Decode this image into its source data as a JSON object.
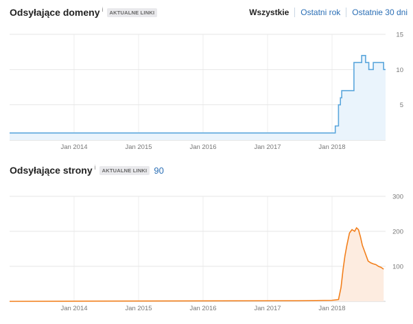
{
  "tabs": {
    "all": "Wszystkie",
    "last_year": "Ostatni rok",
    "last_30_days": "Ostatnie 30 dni"
  },
  "info_glyph": "i",
  "colors": {
    "domains_line": "#5aa6dc",
    "domains_fill": "#eaf4fc",
    "pages_line": "#f27f1b",
    "pages_fill": "#fdece0",
    "link": "#2a6eb5"
  },
  "chart_data": [
    {
      "type": "area",
      "title": "Odsyłające domeny",
      "badge": "AKTUALNE LINKI",
      "xlabel": "",
      "ylabel": "",
      "xlim": [
        2013.0,
        2018.83
      ],
      "ylim": [
        0,
        15
      ],
      "yticks": [
        5,
        10,
        15
      ],
      "xticks": [
        {
          "x": 2014.0,
          "label": "Jan 2014"
        },
        {
          "x": 2015.0,
          "label": "Jan 2015"
        },
        {
          "x": 2016.0,
          "label": "Jan 2016"
        },
        {
          "x": 2017.0,
          "label": "Jan 2017"
        },
        {
          "x": 2018.0,
          "label": "Jan 2018"
        }
      ],
      "step": true,
      "x": [
        2013.0,
        2018.05,
        2018.1,
        2018.13,
        2018.15,
        2018.19,
        2018.34,
        2018.37,
        2018.46,
        2018.52,
        2018.57,
        2018.64,
        2018.8
      ],
      "y": [
        1,
        2,
        5,
        6,
        7,
        7,
        11,
        11,
        12,
        11,
        10,
        11,
        10
      ],
      "legend": "none",
      "grid": true
    },
    {
      "type": "area",
      "title": "Odsyłające strony",
      "badge": "AKTUALNE LINKI",
      "total": "90",
      "xlabel": "",
      "ylabel": "",
      "xlim": [
        2013.0,
        2018.83
      ],
      "ylim": [
        0,
        300
      ],
      "yticks": [
        100,
        200,
        300
      ],
      "xticks": [
        {
          "x": 2014.0,
          "label": "Jan 2014"
        },
        {
          "x": 2015.0,
          "label": "Jan 2015"
        },
        {
          "x": 2016.0,
          "label": "Jan 2016"
        },
        {
          "x": 2017.0,
          "label": "Jan 2017"
        },
        {
          "x": 2018.0,
          "label": "Jan 2018"
        }
      ],
      "step": false,
      "x": [
        2013.0,
        2017.5,
        2018.0,
        2018.1,
        2018.14,
        2018.17,
        2018.2,
        2018.23,
        2018.27,
        2018.31,
        2018.35,
        2018.38,
        2018.41,
        2018.44,
        2018.47,
        2018.5,
        2018.53,
        2018.56,
        2018.6,
        2018.64,
        2018.68,
        2018.72,
        2018.76,
        2018.8
      ],
      "y": [
        0,
        2,
        3,
        5,
        40,
        90,
        130,
        160,
        195,
        205,
        200,
        210,
        205,
        185,
        160,
        145,
        130,
        115,
        110,
        107,
        105,
        100,
        97,
        92
      ],
      "legend": "none",
      "grid": true
    }
  ]
}
